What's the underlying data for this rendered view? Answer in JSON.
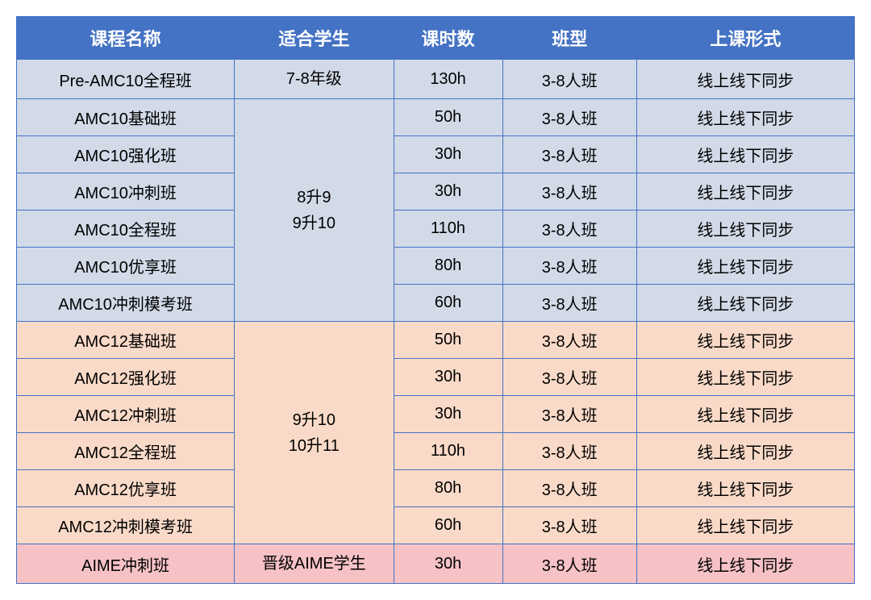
{
  "table": {
    "headers": {
      "course": "课程名称",
      "student": "适合学生",
      "hours": "课时数",
      "class_type": "班型",
      "format": "上课形式"
    },
    "header_bg": "#4472c4",
    "header_fg": "#ffffff",
    "border_color": "#4472c4",
    "groups": [
      {
        "bg": "#d2dae8",
        "student_lines": [
          "7-8年级"
        ],
        "rows": [
          {
            "course": "Pre-AMC10全程班",
            "hours": "130h",
            "class_type": "3-8人班",
            "format": "线上线下同步"
          }
        ]
      },
      {
        "bg": "#d2dae8",
        "student_lines": [
          "8升9",
          "9升10"
        ],
        "rows": [
          {
            "course": "AMC10基础班",
            "hours": "50h",
            "class_type": "3-8人班",
            "format": "线上线下同步"
          },
          {
            "course": "AMC10强化班",
            "hours": "30h",
            "class_type": "3-8人班",
            "format": "线上线下同步"
          },
          {
            "course": "AMC10冲刺班",
            "hours": "30h",
            "class_type": "3-8人班",
            "format": "线上线下同步"
          },
          {
            "course": "AMC10全程班",
            "hours": "110h",
            "class_type": "3-8人班",
            "format": "线上线下同步"
          },
          {
            "course": "AMC10优享班",
            "hours": "80h",
            "class_type": "3-8人班",
            "format": "线上线下同步"
          },
          {
            "course": "AMC10冲刺模考班",
            "hours": "60h",
            "class_type": "3-8人班",
            "format": "线上线下同步"
          }
        ]
      },
      {
        "bg": "#f9dac8",
        "student_lines": [
          "9升10",
          "10升11"
        ],
        "rows": [
          {
            "course": "AMC12基础班",
            "hours": "50h",
            "class_type": "3-8人班",
            "format": "线上线下同步"
          },
          {
            "course": "AMC12强化班",
            "hours": "30h",
            "class_type": "3-8人班",
            "format": "线上线下同步"
          },
          {
            "course": "AMC12冲刺班",
            "hours": "30h",
            "class_type": "3-8人班",
            "format": "线上线下同步"
          },
          {
            "course": "AMC12全程班",
            "hours": "110h",
            "class_type": "3-8人班",
            "format": "线上线下同步"
          },
          {
            "course": "AMC12优享班",
            "hours": "80h",
            "class_type": "3-8人班",
            "format": "线上线下同步"
          },
          {
            "course": "AMC12冲刺模考班",
            "hours": "60h",
            "class_type": "3-8人班",
            "format": "线上线下同步"
          }
        ]
      },
      {
        "bg": "#f6c2c6",
        "student_lines": [
          "晋级AIME学生"
        ],
        "rows": [
          {
            "course": "AIME冲刺班",
            "hours": "30h",
            "class_type": "3-8人班",
            "format": "线上线下同步"
          }
        ]
      }
    ]
  }
}
